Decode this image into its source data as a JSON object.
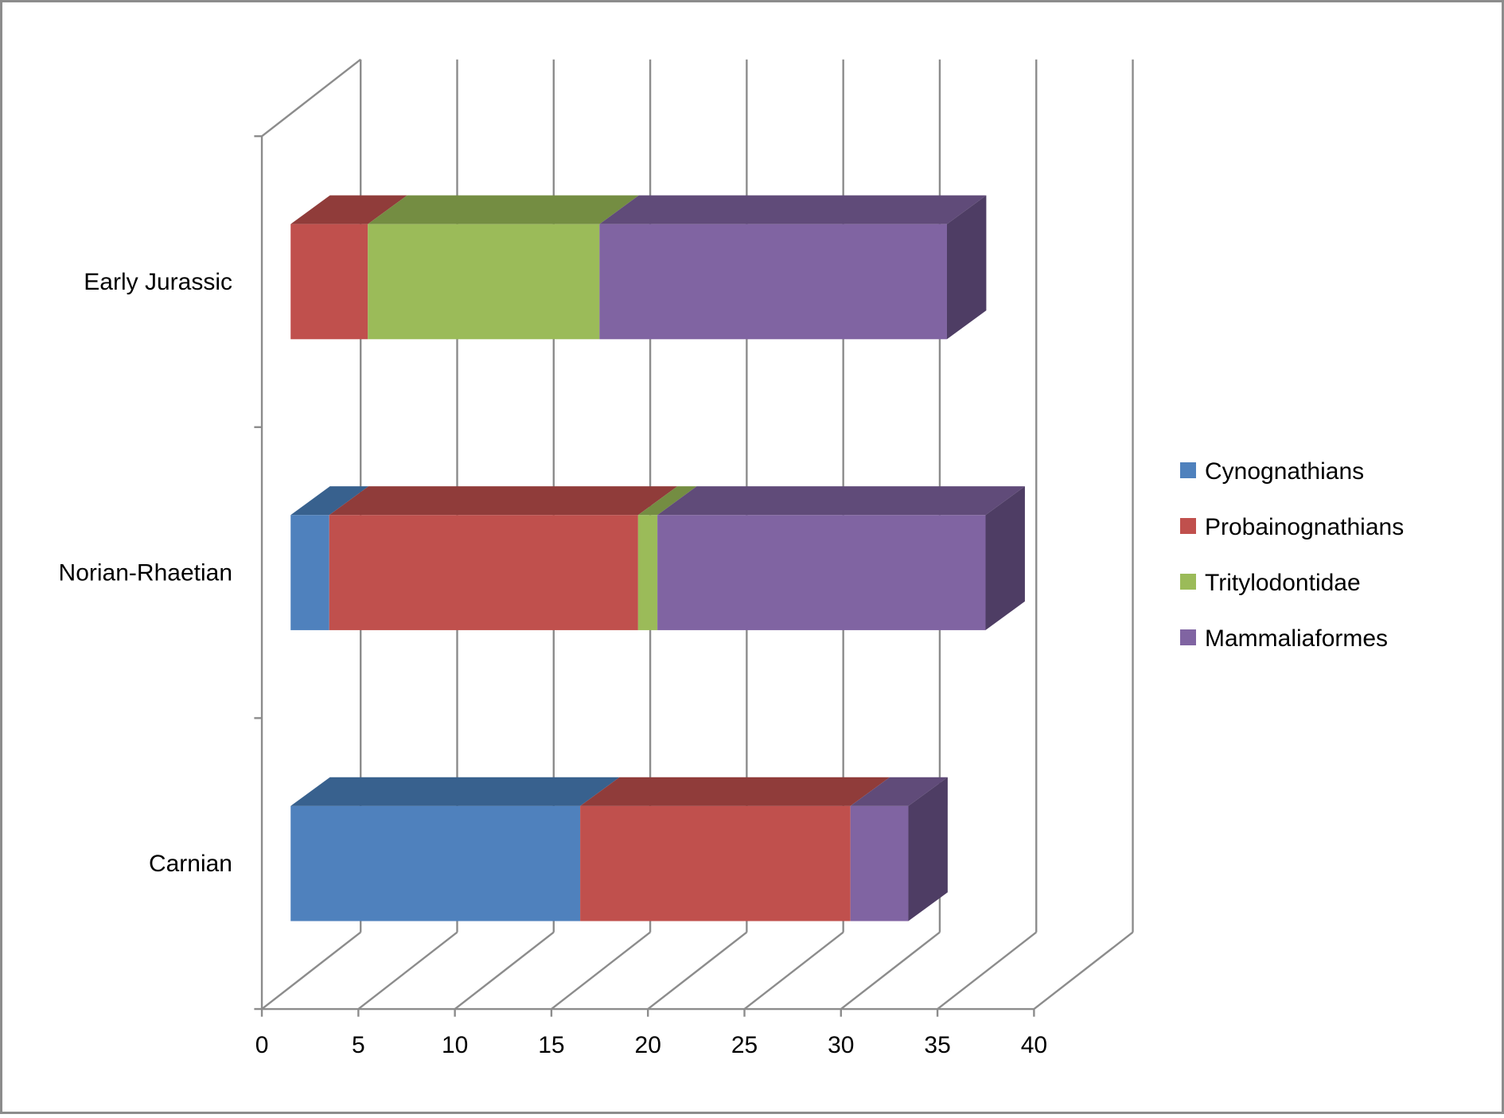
{
  "chart_data": {
    "type": "bar",
    "orientation": "horizontal",
    "stacked": true,
    "style_3d": true,
    "title": "",
    "xlabel": "",
    "ylabel": "",
    "categories": [
      "Carnian",
      "Norian-Rhaetian",
      "Early Jurassic"
    ],
    "series": [
      {
        "name": "Cynognathians",
        "values": [
          15,
          2,
          0
        ]
      },
      {
        "name": "Probainognathians",
        "values": [
          14,
          16,
          4
        ]
      },
      {
        "name": "Tritylodontidae",
        "values": [
          0,
          1,
          12
        ]
      },
      {
        "name": "Mammaliaformes",
        "values": [
          3,
          17,
          18
        ]
      }
    ],
    "xlim": [
      0,
      40
    ],
    "xticks": [
      "0",
      "5",
      "10",
      "15",
      "20",
      "25",
      "30",
      "35",
      "40"
    ],
    "grid": true,
    "legend_position": "right",
    "colors": {
      "Cynognathians": {
        "front": "#4f81bd",
        "top": "#38618e",
        "side": "#2f4f76"
      },
      "Probainognathians": {
        "front": "#c0504d",
        "top": "#903c3a",
        "side": "#7a3331"
      },
      "Tritylodontidae": {
        "front": "#9bbb59",
        "top": "#748d42",
        "side": "#627838"
      },
      "Mammaliaformes": {
        "front": "#8064a2",
        "top": "#604b79",
        "side": "#4e3d64"
      },
      "gridline": "#8c8c8c",
      "frame": "#8c8c8c"
    }
  }
}
